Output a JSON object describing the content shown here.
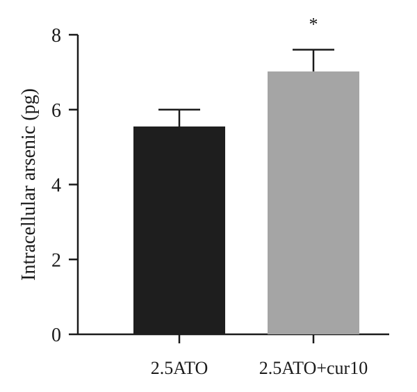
{
  "chart_data": {
    "type": "bar",
    "categories": [
      "2.5ATO",
      "2.5ATO+cur10"
    ],
    "values": [
      5.55,
      7.02
    ],
    "errors": [
      0.45,
      0.58
    ],
    "colors": [
      "#1e1e1e",
      "#a5a5a5"
    ],
    "significance": [
      "",
      "*"
    ],
    "ylabel": "Intracellular arsenic (pg)",
    "xlabel": "",
    "ylim": [
      0,
      8
    ],
    "yticks": [
      0,
      2,
      4,
      6,
      8
    ],
    "grid": false,
    "legend": "none"
  }
}
